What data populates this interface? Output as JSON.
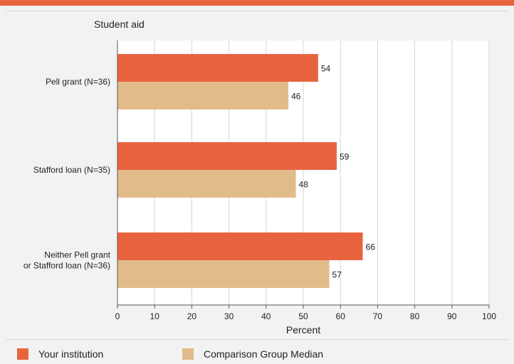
{
  "colors": {
    "your_institution": "#e8643f",
    "comparison_median": "#e2bb8b",
    "accent_bar": "#e8643f"
  },
  "legend": {
    "your_institution": "Your institution",
    "comparison_median": "Comparison Group Median"
  },
  "chart_data": {
    "type": "bar",
    "orientation": "horizontal",
    "title": "Student aid",
    "xlabel": "Percent",
    "xlim": [
      0,
      100
    ],
    "xticks": [
      0,
      10,
      20,
      30,
      40,
      50,
      60,
      70,
      80,
      90,
      100
    ],
    "grid": true,
    "legend_placement": "bottom",
    "categories": [
      [
        "Pell grant  (N=36)"
      ],
      [
        "Stafford loan (N=35)"
      ],
      [
        "Neither Pell grant",
        "or Stafford loan (N=36)"
      ]
    ],
    "series": [
      {
        "name": "Your institution",
        "values": [
          54,
          59,
          66
        ]
      },
      {
        "name": "Comparison Group Median",
        "values": [
          46,
          48,
          57
        ]
      }
    ]
  }
}
